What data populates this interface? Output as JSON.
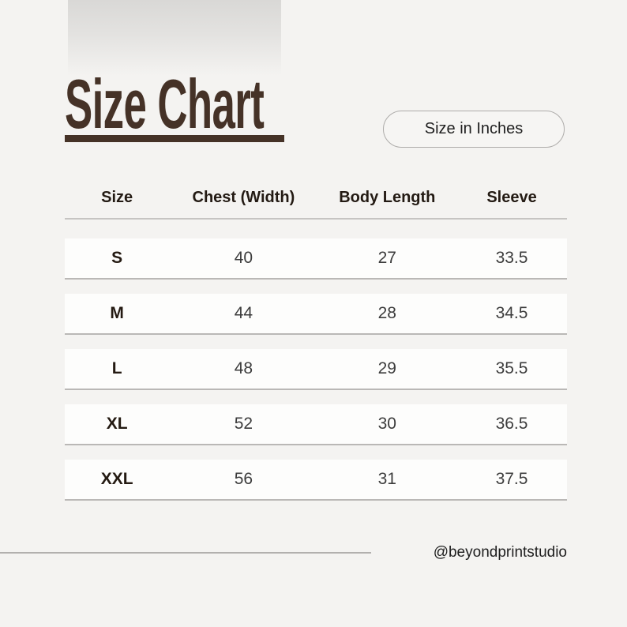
{
  "header": {
    "title": "Size Chart",
    "badge_label": "Size in Inches"
  },
  "chart_data": {
    "type": "table",
    "title": "Size Chart",
    "unit_note": "Size in Inches",
    "columns": [
      "Size",
      "Chest (Width)",
      "Body Length",
      "Sleeve"
    ],
    "rows": [
      [
        "S",
        "40",
        "27",
        "33.5"
      ],
      [
        "M",
        "44",
        "28",
        "34.5"
      ],
      [
        "L",
        "48",
        "29",
        "35.5"
      ],
      [
        "XL",
        "52",
        "30",
        "36.5"
      ],
      [
        "XXL",
        "56",
        "31",
        "37.5"
      ]
    ]
  },
  "footer": {
    "credit": "@beyondprintstudio"
  },
  "colors": {
    "brand_brown": "#453227",
    "page_background": "#f4f3f1",
    "row_background": "#fdfdfc"
  }
}
